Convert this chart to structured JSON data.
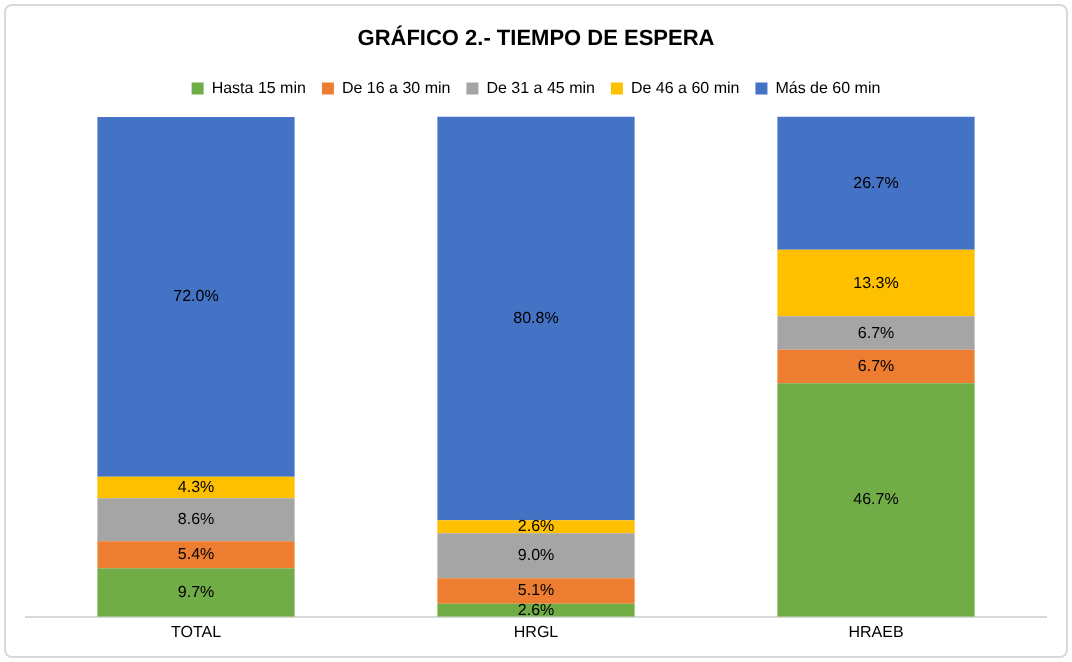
{
  "chart_data": {
    "type": "bar",
    "title": "GRÁFICO 2.- TIEMPO DE ESPERA",
    "categories": [
      "TOTAL",
      "HRGL",
      "HRAEB"
    ],
    "stacked": true,
    "legend": "top",
    "grid": false,
    "tick_labels": "x",
    "series": [
      {
        "name": "Hasta 15 min",
        "color": "#70ad47",
        "values": [
          9.7,
          2.6,
          46.7
        ],
        "value_labels": [
          "9.7%",
          "2.6%",
          "46.7%"
        ]
      },
      {
        "name": "De 16 a 30 min",
        "color": "#ed7d31",
        "values": [
          5.4,
          5.1,
          6.7
        ],
        "value_labels": [
          "5.4%",
          "5.1%",
          "6.7%"
        ]
      },
      {
        "name": "De 31 a 45 min",
        "color": "#a5a5a5",
        "values": [
          8.6,
          9.0,
          6.7
        ],
        "value_labels": [
          "8.6%",
          "9.0%",
          "6.7%"
        ]
      },
      {
        "name": "De 46 a 60 min",
        "color": "#ffc000",
        "values": [
          4.3,
          2.6,
          13.3
        ],
        "value_labels": [
          "4.3%",
          "2.6%",
          "13.3%"
        ]
      },
      {
        "name": "Más de 60 min",
        "color": "#4472c4",
        "values": [
          72.0,
          80.8,
          26.7
        ],
        "value_labels": [
          "72.0%",
          "80.8%",
          "26.7%"
        ]
      }
    ]
  }
}
